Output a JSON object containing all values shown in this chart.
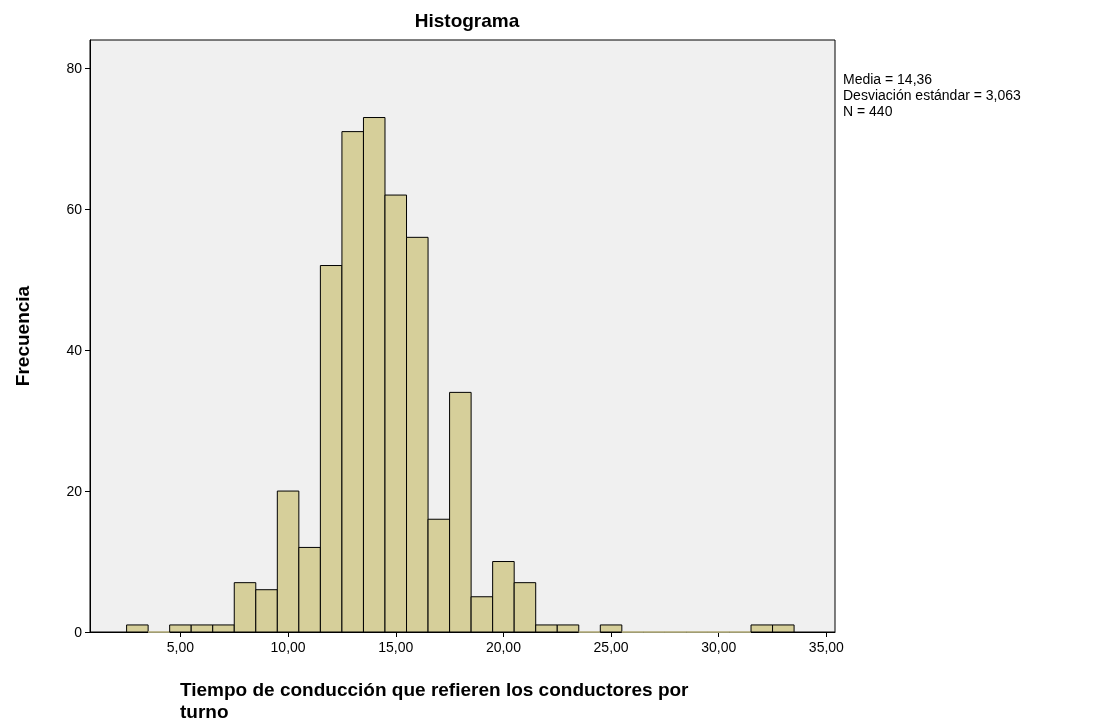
{
  "chart_data": {
    "type": "histogram",
    "title": "Histograma",
    "xlabel": "Tiempo de conducción que refieren los conductores por turno",
    "ylabel": "Frecuencia",
    "bins": [
      2.5,
      3.5,
      4.5,
      5.5,
      6.5,
      7.5,
      8.5,
      9.5,
      10.5,
      11.5,
      12.5,
      13.5,
      14.5,
      15.5,
      16.5,
      17.5,
      18.5,
      19.5,
      20.5,
      21.5,
      22.5,
      23.5,
      24.5,
      25.5,
      26.5,
      27.5,
      28.5,
      29.5,
      30.5,
      31.5,
      32.5,
      33.5
    ],
    "values": [
      1,
      0,
      1,
      1,
      1,
      7,
      6,
      20,
      12,
      52,
      71,
      73,
      62,
      56,
      16,
      34,
      5,
      10,
      7,
      1,
      1,
      0,
      1,
      0,
      0,
      0,
      0,
      0,
      0,
      1,
      1
    ],
    "color": "#d6cf9a",
    "xlim": [
      0.8,
      35.4
    ],
    "xticks": [
      {
        "value": 5,
        "label": "5,00"
      },
      {
        "value": 10,
        "label": "10,00"
      },
      {
        "value": 15,
        "label": "15,00"
      },
      {
        "value": 20,
        "label": "20,00"
      },
      {
        "value": 25,
        "label": "25,00"
      },
      {
        "value": 30,
        "label": "30,00"
      },
      {
        "value": 35,
        "label": "35,00"
      }
    ],
    "ylim": [
      0,
      84
    ],
    "yticks": [
      0,
      20,
      40,
      60,
      80
    ],
    "annotations": [
      "Media = 14,36",
      "Desviación estándar = 3,063",
      "N = 440"
    ],
    "grid": false
  }
}
